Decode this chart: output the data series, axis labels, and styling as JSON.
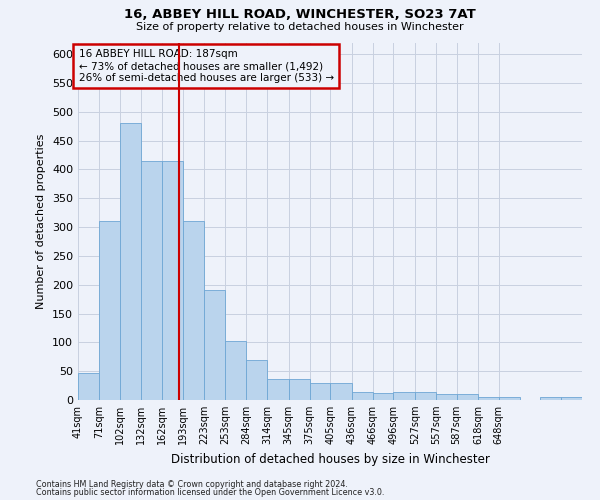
{
  "title1": "16, ABBEY HILL ROAD, WINCHESTER, SO23 7AT",
  "title2": "Size of property relative to detached houses in Winchester",
  "xlabel": "Distribution of detached houses by size in Winchester",
  "ylabel": "Number of detached properties",
  "bar_heights": [
    46,
    311,
    480,
    415,
    415,
    311,
    190,
    103,
    70,
    37,
    37,
    30,
    30,
    14,
    13,
    14,
    14,
    10,
    10,
    5,
    5,
    0,
    5,
    5
  ],
  "bin_edges": [
    41,
    71,
    102,
    132,
    162,
    193,
    223,
    253,
    284,
    314,
    345,
    375,
    405,
    436,
    466,
    496,
    527,
    557,
    587,
    618,
    648,
    678,
    708,
    738,
    768
  ],
  "tick_labels": [
    "41sqm",
    "71sqm",
    "102sqm",
    "132sqm",
    "162sqm",
    "193sqm",
    "223sqm",
    "253sqm",
    "284sqm",
    "314sqm",
    "345sqm",
    "375sqm",
    "405sqm",
    "436sqm",
    "466sqm",
    "496sqm",
    "527sqm",
    "557sqm",
    "587sqm",
    "618sqm",
    "648sqm"
  ],
  "bar_color": "#bad4ed",
  "bar_edge_color": "#6ea6d4",
  "vline_x": 187,
  "vline_color": "#cc0000",
  "annotation_box_color": "#cc0000",
  "annotation_line1": "16 ABBEY HILL ROAD: 187sqm",
  "annotation_line2": "← 73% of detached houses are smaller (1,492)",
  "annotation_line3": "26% of semi-detached houses are larger (533) →",
  "ylim": [
    0,
    620
  ],
  "yticks": [
    0,
    50,
    100,
    150,
    200,
    250,
    300,
    350,
    400,
    450,
    500,
    550,
    600
  ],
  "footnote1": "Contains HM Land Registry data © Crown copyright and database right 2024.",
  "footnote2": "Contains public sector information licensed under the Open Government Licence v3.0.",
  "bg_color": "#eef2fa",
  "grid_color": "#c8d0e0"
}
